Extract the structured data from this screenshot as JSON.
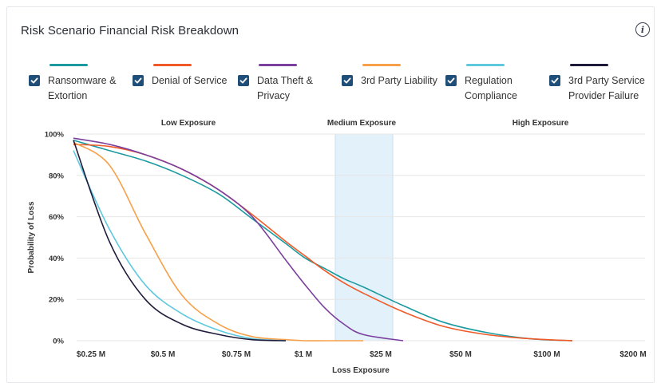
{
  "title": "Risk Scenario Financial Risk Breakdown",
  "info_icon": "info-icon",
  "legend": [
    {
      "label": "Ransomware & Extortion",
      "color": "#1a9a9f",
      "checked": true
    },
    {
      "label": "Denial of Service",
      "color": "#f05a28",
      "checked": true
    },
    {
      "label": "Data Theft & Privacy",
      "color": "#7b3f9e",
      "checked": true
    },
    {
      "label": "3rd Party Liability",
      "color": "#f7a04a",
      "checked": true
    },
    {
      "label": "Regulation Compliance",
      "color": "#5ec8de",
      "checked": true
    },
    {
      "label": "3rd Party Service Provider Failure",
      "color": "#1e1b3a",
      "checked": true
    }
  ],
  "chart_data": {
    "type": "line",
    "xlabel": "Loss Exposure",
    "ylabel": "Probability of Loss",
    "x_ticks": [
      "$0.25 M",
      "$0.5 M",
      "$0.75 M",
      "$1 M",
      "$25 M",
      "$50 M",
      "$100 M",
      "$200 M"
    ],
    "y_ticks": [
      "0%",
      "20%",
      "40%",
      "60%",
      "80%",
      "100%"
    ],
    "ylim": [
      0,
      100
    ],
    "grid": true,
    "zones": [
      {
        "label": "Low Exposure",
        "from": "$0.25 M",
        "to": "$1 M",
        "highlight": false
      },
      {
        "label": "Medium Exposure",
        "from": "$1 M",
        "to": "$25 M",
        "highlight": true,
        "color": "#e3f1fb"
      },
      {
        "label": "High Exposure",
        "from": "$25 M",
        "to": "$200 M",
        "highlight": false
      }
    ],
    "x_index": [
      0,
      0.5,
      1,
      1.5,
      2,
      2.5,
      3,
      3.25,
      3.5,
      3.75,
      4,
      4.5,
      5,
      5.5,
      6,
      6.5
    ],
    "series": [
      {
        "name": "Ransomware & Extortion",
        "color": "#1a9a9f",
        "values": [
          97,
          92,
          87,
          80,
          71,
          59,
          47,
          40,
          35,
          30,
          26,
          17,
          9,
          4,
          1,
          0
        ]
      },
      {
        "name": "Denial of Service",
        "color": "#f05a28",
        "values": [
          95,
          94,
          90,
          83,
          73,
          61,
          48,
          41,
          34,
          28,
          23,
          14,
          7,
          3,
          1,
          0
        ]
      },
      {
        "name": "Data Theft & Privacy",
        "color": "#7b3f9e",
        "values": [
          98,
          95,
          90,
          83,
          73,
          60,
          39,
          27,
          16,
          8,
          3,
          0
        ]
      },
      {
        "name": "3rd Party Liability",
        "color": "#f7a04a",
        "values": [
          96,
          85,
          52,
          22,
          8,
          2,
          0.5,
          0,
          0,
          0,
          0
        ]
      },
      {
        "name": "Regulation Compliance",
        "color": "#5ec8de",
        "values": [
          92,
          54,
          27,
          13,
          5,
          1,
          0
        ]
      },
      {
        "name": "3rd Party Service Provider Failure",
        "color": "#1e1b3a",
        "values": [
          97,
          48,
          20,
          8,
          3,
          0.5,
          0
        ]
      }
    ]
  }
}
